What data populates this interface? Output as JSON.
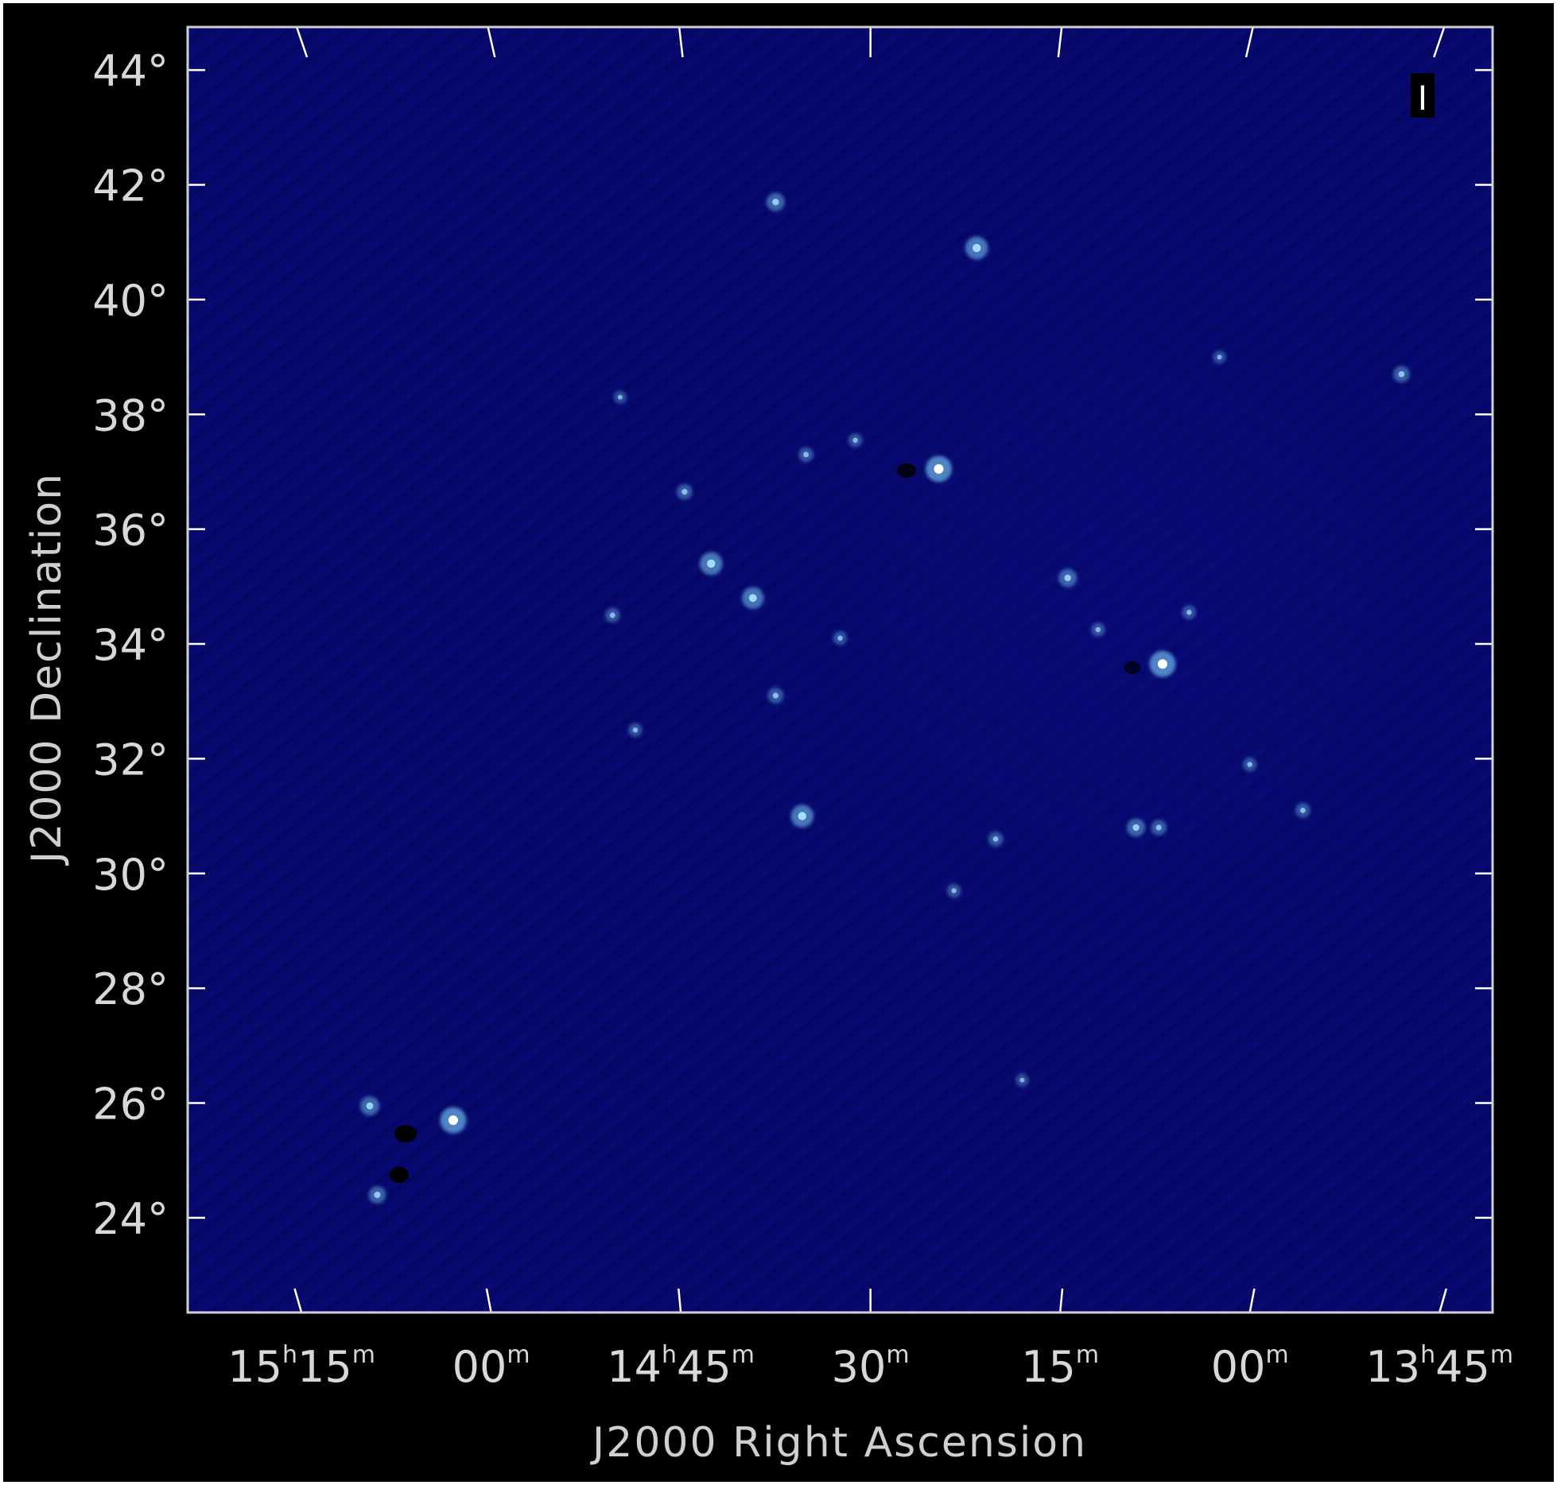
{
  "image": {
    "background_color": "#000000",
    "map_color": "#06086a",
    "grid_color": "#ffffff",
    "source_color": "#7fd7ff"
  },
  "axes": {
    "x_title": "J2000 Right Ascension",
    "y_title": "J2000 Declination",
    "stokes_label": "I"
  },
  "ra_ticks": [
    {
      "hour": "15",
      "minute": "15",
      "ra_hours": 15.25
    },
    {
      "hour": "",
      "minute": "00",
      "ra_hours": 15.0
    },
    {
      "hour": "14",
      "minute": "45",
      "ra_hours": 14.75
    },
    {
      "hour": "",
      "minute": "30",
      "ra_hours": 14.5
    },
    {
      "hour": "",
      "minute": "15",
      "ra_hours": 14.25
    },
    {
      "hour": "",
      "minute": "00",
      "ra_hours": 14.0
    },
    {
      "hour": "13",
      "minute": "45",
      "ra_hours": 13.75
    }
  ],
  "dec_ticks": [
    {
      "label": "44°",
      "dec": 44
    },
    {
      "label": "42°",
      "dec": 42
    },
    {
      "label": "40°",
      "dec": 40
    },
    {
      "label": "38°",
      "dec": 38
    },
    {
      "label": "36°",
      "dec": 36
    },
    {
      "label": "34°",
      "dec": 34
    },
    {
      "label": "32°",
      "dec": 32
    },
    {
      "label": "30°",
      "dec": 30
    },
    {
      "label": "28°",
      "dec": 28
    },
    {
      "label": "26°",
      "dec": 26
    },
    {
      "label": "24°",
      "dec": 24
    }
  ],
  "sources": [
    {
      "ra": 14.41,
      "dec": 37.05,
      "brightness": 1.0
    },
    {
      "ra": 14.115,
      "dec": 33.65,
      "brightness": 1.0
    },
    {
      "ra": 15.05,
      "dec": 25.7,
      "brightness": 1.0
    },
    {
      "ra": 14.36,
      "dec": 40.9,
      "brightness": 0.8
    },
    {
      "ra": 14.71,
      "dec": 35.4,
      "brightness": 0.8
    },
    {
      "ra": 14.655,
      "dec": 34.8,
      "brightness": 0.75
    },
    {
      "ra": 14.59,
      "dec": 31.0,
      "brightness": 0.8
    },
    {
      "ra": 14.625,
      "dec": 41.7,
      "brightness": 0.55
    },
    {
      "ra": 14.24,
      "dec": 35.15,
      "brightness": 0.55
    },
    {
      "ra": 14.15,
      "dec": 30.8,
      "brightness": 0.55
    },
    {
      "ra": 15.16,
      "dec": 25.95,
      "brightness": 0.6
    },
    {
      "ra": 15.15,
      "dec": 24.4,
      "brightness": 0.5
    },
    {
      "ra": 13.8,
      "dec": 38.7,
      "brightness": 0.45
    },
    {
      "ra": 14.745,
      "dec": 36.65,
      "brightness": 0.4
    },
    {
      "ra": 14.84,
      "dec": 34.5,
      "brightness": 0.35
    },
    {
      "ra": 14.625,
      "dec": 33.1,
      "brightness": 0.4
    },
    {
      "ra": 14.585,
      "dec": 37.3,
      "brightness": 0.35
    },
    {
      "ra": 14.335,
      "dec": 30.6,
      "brightness": 0.35
    },
    {
      "ra": 14.12,
      "dec": 30.8,
      "brightness": 0.4
    },
    {
      "ra": 13.93,
      "dec": 31.1,
      "brightness": 0.35
    },
    {
      "ra": 14.0,
      "dec": 31.9,
      "brightness": 0.3
    },
    {
      "ra": 14.08,
      "dec": 34.55,
      "brightness": 0.3
    },
    {
      "ra": 14.2,
      "dec": 34.25,
      "brightness": 0.3
    },
    {
      "ra": 14.54,
      "dec": 34.1,
      "brightness": 0.3
    },
    {
      "ra": 14.39,
      "dec": 29.7,
      "brightness": 0.3
    },
    {
      "ra": 14.3,
      "dec": 26.4,
      "brightness": 0.25
    },
    {
      "ra": 14.81,
      "dec": 32.5,
      "brightness": 0.3
    },
    {
      "ra": 14.52,
      "dec": 37.55,
      "brightness": 0.3
    },
    {
      "ra": 14.04,
      "dec": 39.0,
      "brightness": 0.25
    },
    {
      "ra": 14.83,
      "dec": 38.3,
      "brightness": 0.25
    }
  ]
}
